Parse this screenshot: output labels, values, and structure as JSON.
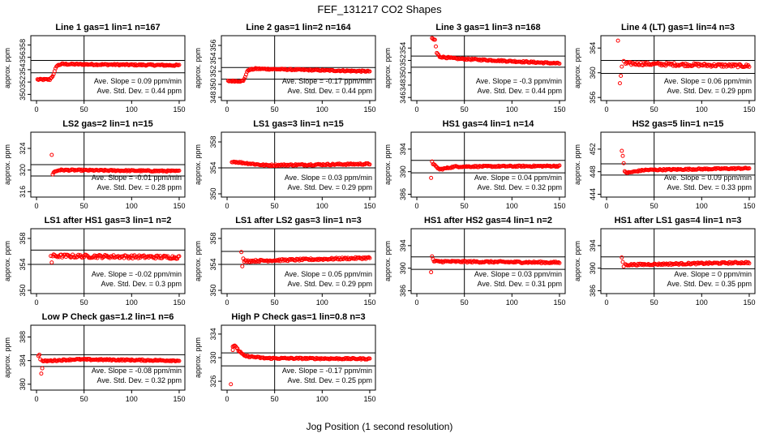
{
  "page": {
    "title": "FEF_131217  CO2 Shapes",
    "xlabel": "Jog Position (1 second resolution)",
    "ylabel": "approx. ppm",
    "slope_prefix": "Ave. Slope = ",
    "slope_suffix": " ppm/min",
    "sd_prefix": "Ave. Std. Dev. = ",
    "sd_suffix": " ppm"
  },
  "colors": {
    "points": "#ff0000",
    "axes": "#000000",
    "background": "#ffffff"
  },
  "chart_data": [
    {
      "type": "scatter",
      "title": "Line 1 gas=1 lin=1 n=167",
      "ylim": [
        349,
        359.5
      ],
      "yticks": [
        350,
        352,
        354,
        356,
        358
      ],
      "xticks": [
        0,
        50,
        100,
        150
      ],
      "xlim": [
        -6,
        156
      ],
      "hlines": [
        353.5,
        355.5
      ],
      "vline": 50,
      "slope": "0.09",
      "sd": "0.44",
      "profile": {
        "start_x": 1,
        "end_x": 150,
        "knots": [
          [
            1,
            352.4
          ],
          [
            14,
            352.4
          ],
          [
            18,
            353.2
          ],
          [
            21,
            354.6
          ],
          [
            26,
            354.9
          ],
          [
            150,
            354.7
          ]
        ],
        "noise": 0.12
      }
    },
    {
      "type": "scatter",
      "title": "Line 2 gas=1 lin=2 n=164",
      "ylim": [
        347.5,
        357.5
      ],
      "yticks": [
        348,
        350,
        352,
        354,
        356
      ],
      "xticks": [
        0,
        50,
        100,
        150
      ],
      "xlim": [
        -6,
        156
      ],
      "hlines": [
        350.8,
        352.6
      ],
      "vline": 50,
      "slope": "-0.17",
      "sd": "0.44",
      "profile": {
        "start_x": 1,
        "end_x": 150,
        "knots": [
          [
            1,
            350.5
          ],
          [
            17,
            350.5
          ],
          [
            22,
            352.2
          ],
          [
            30,
            352.4
          ],
          [
            150,
            352.0
          ]
        ],
        "noise": 0.1
      }
    },
    {
      "type": "scatter",
      "title": "Line 3 gas=1 lin=3 n=168",
      "ylim": [
        345.5,
        356
      ],
      "yticks": [
        346,
        348,
        350,
        352,
        354
      ],
      "xticks": [
        0,
        50,
        100,
        150
      ],
      "xlim": [
        -6,
        156
      ],
      "hlines": [
        350.9,
        352.7
      ],
      "vline": 50,
      "slope": "-0.3",
      "sd": "0.44",
      "profile": {
        "start_x": 16,
        "end_x": 150,
        "knots": [
          [
            16,
            355.5
          ],
          [
            19,
            355.3
          ],
          [
            21,
            353.2
          ],
          [
            24,
            352.6
          ],
          [
            40,
            352.3
          ],
          [
            150,
            351.5
          ]
        ],
        "noise": 0.12
      }
    },
    {
      "type": "scatter",
      "title": "Line 4 (LT) gas=1 lin=4 n=3",
      "ylim": [
        355.5,
        366
      ],
      "yticks": [
        356,
        360,
        364
      ],
      "xticks": [
        0,
        50,
        100,
        150
      ],
      "xlim": [
        -6,
        156
      ],
      "hlines": [
        359.9,
        362.0
      ],
      "vline": 50,
      "slope": "0.06",
      "sd": "0.29",
      "profile": {
        "start_x": 20,
        "end_x": 150,
        "knots": [
          [
            20,
            361.5
          ],
          [
            150,
            361.1
          ]
        ],
        "noise": 0.25
      },
      "extra_points": [
        [
          12,
          365.2
        ],
        [
          14,
          358.3
        ],
        [
          15,
          359.5
        ],
        [
          16,
          361.0
        ],
        [
          18,
          361.9
        ]
      ]
    },
    {
      "type": "scatter",
      "title": "LS2 gas=2 lin=1 n=15",
      "ylim": [
        315,
        327
      ],
      "yticks": [
        316,
        320,
        324
      ],
      "xticks": [
        0,
        50,
        100,
        150
      ],
      "xlim": [
        -6,
        156
      ],
      "hlines": [
        318.9,
        321.0
      ],
      "vline": 50,
      "slope": "-0.01",
      "sd": "0.28",
      "profile": {
        "start_x": 18,
        "end_x": 150,
        "knots": [
          [
            18,
            319.6
          ],
          [
            24,
            320.0
          ],
          [
            150,
            319.8
          ]
        ],
        "noise": 0.12
      },
      "extra_points": [
        [
          16,
          322.8
        ],
        [
          17,
          319.2
        ]
      ]
    },
    {
      "type": "scatter",
      "title": "LS1 gas=3 lin=1 n=15",
      "ylim": [
        349.5,
        359.5
      ],
      "yticks": [
        350,
        354,
        358
      ],
      "xticks": [
        0,
        50,
        100,
        150
      ],
      "xlim": [
        -6,
        156
      ],
      "hlines": [
        354.0,
        354.0
      ],
      "vline": 50,
      "slope": "0.03",
      "sd": "0.29",
      "profile": {
        "start_x": 5,
        "end_x": 150,
        "knots": [
          [
            5,
            355.0
          ],
          [
            15,
            354.8
          ],
          [
            40,
            354.4
          ],
          [
            150,
            354.6
          ]
        ],
        "noise": 0.12
      }
    },
    {
      "type": "scatter",
      "title": "HS1 gas=4 lin=1 n=14",
      "ylim": [
        385.5,
        397
      ],
      "yticks": [
        386,
        390,
        394
      ],
      "xticks": [
        0,
        50,
        100,
        150
      ],
      "xlim": [
        -6,
        156
      ],
      "hlines": [
        389.8,
        392.0
      ],
      "vline": 50,
      "slope": "0.04",
      "sd": "0.32",
      "profile": {
        "start_x": 17,
        "end_x": 150,
        "knots": [
          [
            17,
            391.4
          ],
          [
            20,
            390.9
          ],
          [
            24,
            390.4
          ],
          [
            40,
            390.9
          ],
          [
            150,
            391.0
          ]
        ],
        "noise": 0.12
      },
      "extra_points": [
        [
          15,
          388.9
        ],
        [
          16,
          391.8
        ]
      ]
    },
    {
      "type": "scatter",
      "title": "HS2 gas=5 lin=1 n=15",
      "ylim": [
        443.5,
        455
      ],
      "yticks": [
        444,
        448,
        452
      ],
      "xticks": [
        0,
        50,
        100,
        150
      ],
      "xlim": [
        -6,
        156
      ],
      "hlines": [
        447.4,
        449.4
      ],
      "vline": 50,
      "slope": "0.09",
      "sd": "0.33",
      "profile": {
        "start_x": 19,
        "end_x": 150,
        "knots": [
          [
            19,
            448.0
          ],
          [
            22,
            447.8
          ],
          [
            40,
            448.3
          ],
          [
            150,
            448.6
          ]
        ],
        "noise": 0.12
      },
      "extra_points": [
        [
          16,
          451.7
        ],
        [
          17,
          450.8
        ],
        [
          18,
          449.5
        ]
      ]
    },
    {
      "type": "scatter",
      "title": "LS1 after HS1 gas=3 lin=1 n=2",
      "ylim": [
        349.5,
        359.5
      ],
      "yticks": [
        350,
        354,
        358
      ],
      "xticks": [
        0,
        50,
        100,
        150
      ],
      "xlim": [
        -6,
        156
      ],
      "hlines": [
        354.0,
        356.2
      ],
      "vline": 50,
      "slope": "-0.02",
      "sd": "0.3",
      "profile": {
        "start_x": 17,
        "end_x": 150,
        "knots": [
          [
            17,
            355.3
          ],
          [
            150,
            355.1
          ]
        ],
        "noise": 0.25
      },
      "extra_points": [
        [
          15,
          355.3
        ],
        [
          16,
          354.3
        ]
      ]
    },
    {
      "type": "scatter",
      "title": "LS1 after LS2 gas=3 lin=1 n=3",
      "ylim": [
        349.5,
        359.5
      ],
      "yticks": [
        350,
        354,
        358
      ],
      "xticks": [
        0,
        50,
        100,
        150
      ],
      "xlim": [
        -6,
        156
      ],
      "hlines": [
        354.0,
        356.0
      ],
      "vline": 50,
      "slope": "0.05",
      "sd": "0.29",
      "profile": {
        "start_x": 18,
        "end_x": 150,
        "knots": [
          [
            18,
            354.5
          ],
          [
            150,
            355.0
          ]
        ],
        "noise": 0.15
      },
      "extra_points": [
        [
          15,
          355.9
        ],
        [
          16,
          353.7
        ],
        [
          17,
          354.9
        ]
      ]
    },
    {
      "type": "scatter",
      "title": "HS1 after HS2 gas=4 lin=1 n=2",
      "ylim": [
        385.5,
        397
      ],
      "yticks": [
        386,
        390,
        394
      ],
      "xticks": [
        0,
        50,
        100,
        150
      ],
      "xlim": [
        -6,
        156
      ],
      "hlines": [
        389.8,
        392.0
      ],
      "vline": 50,
      "slope": "0.03",
      "sd": "0.31",
      "profile": {
        "start_x": 18,
        "end_x": 150,
        "knots": [
          [
            18,
            391.2
          ],
          [
            150,
            391.0
          ]
        ],
        "noise": 0.15
      },
      "extra_points": [
        [
          15,
          389.3
        ],
        [
          16,
          392.1
        ],
        [
          17,
          391.6
        ]
      ]
    },
    {
      "type": "scatter",
      "title": "HS1 after LS1 gas=4 lin=1 n=3",
      "ylim": [
        385.5,
        397
      ],
      "yticks": [
        386,
        390,
        394
      ],
      "xticks": [
        0,
        50,
        100,
        150
      ],
      "xlim": [
        -6,
        156
      ],
      "hlines": [
        389.9,
        392.0
      ],
      "vline": 50,
      "slope": "0",
      "sd": "0.35",
      "profile": {
        "start_x": 20,
        "end_x": 150,
        "knots": [
          [
            20,
            390.6
          ],
          [
            150,
            391.0
          ]
        ],
        "noise": 0.15
      },
      "extra_points": [
        [
          16,
          391.9
        ],
        [
          17,
          391.1
        ],
        [
          18,
          390.3
        ]
      ]
    },
    {
      "type": "scatter",
      "title": "Low P Check gas=1.2 lin=1 n=6",
      "ylim": [
        379,
        390
      ],
      "yticks": [
        380,
        384,
        388
      ],
      "xticks": [
        0,
        50,
        100,
        150
      ],
      "xlim": [
        -6,
        156
      ],
      "hlines": [
        383.0,
        385.0
      ],
      "vline": 50,
      "slope": "-0.08",
      "sd": "0.32",
      "profile": {
        "start_x": 6,
        "end_x": 150,
        "knots": [
          [
            6,
            383.9
          ],
          [
            40,
            384.2
          ],
          [
            150,
            384.0
          ]
        ],
        "noise": 0.12
      },
      "extra_points": [
        [
          2,
          384.8
        ],
        [
          3,
          385.0
        ],
        [
          4,
          384.2
        ],
        [
          5,
          381.8
        ],
        [
          6,
          382.7
        ]
      ]
    },
    {
      "type": "scatter",
      "title": "High P Check gas=1 lin=0.8 n=3",
      "ylim": [
        324.5,
        335.5
      ],
      "yticks": [
        326,
        330,
        334
      ],
      "xticks": [
        0,
        50,
        100,
        150
      ],
      "xlim": [
        -6,
        156
      ],
      "hlines": [
        328.6,
        330.8
      ],
      "vline": 50,
      "slope": "-0.17",
      "sd": "0.25",
      "profile": {
        "start_x": 6,
        "end_x": 150,
        "knots": [
          [
            6,
            331.8
          ],
          [
            9,
            332.0
          ],
          [
            12,
            331.2
          ],
          [
            18,
            330.3
          ],
          [
            40,
            329.9
          ],
          [
            150,
            329.8
          ]
        ],
        "noise": 0.12
      },
      "extra_points": [
        [
          4,
          325.5
        ],
        [
          6,
          331.3
        ]
      ]
    }
  ]
}
